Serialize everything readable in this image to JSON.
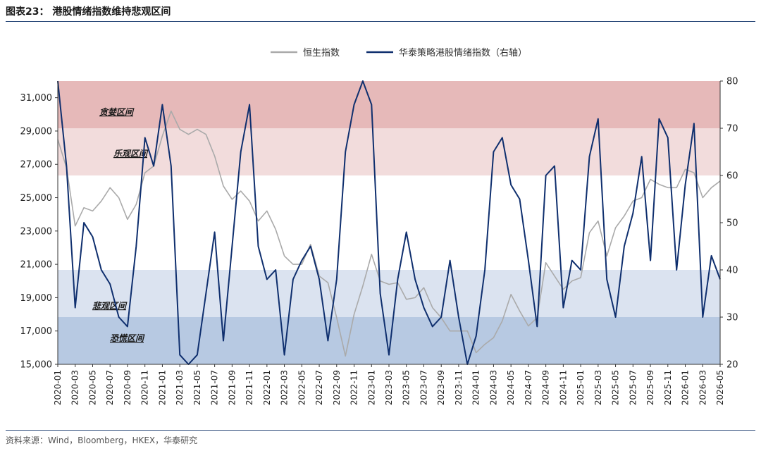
{
  "title": "图表23： 港股情绪指数维持悲观区间",
  "source": "资料来源：Wind，Bloomberg，HKEX，华泰研究",
  "chart_data": {
    "type": "line",
    "series": [
      {
        "name": "恒生指数",
        "axis": "left",
        "color": "#aaaaaa",
        "x": [
          "2020-01",
          "2020-02",
          "2020-03",
          "2020-04",
          "2020-05",
          "2020-06",
          "2020-07",
          "2020-08",
          "2020-09",
          "2020-10",
          "2020-11",
          "2020-12",
          "2021-01",
          "2021-02",
          "2021-03",
          "2021-04",
          "2021-05",
          "2021-06",
          "2021-07",
          "2021-08",
          "2021-09",
          "2021-10",
          "2021-11",
          "2021-12",
          "2022-01",
          "2022-02",
          "2022-03",
          "2022-04",
          "2022-05",
          "2022-06",
          "2022-07",
          "2022-08",
          "2022-09",
          "2022-10",
          "2022-11",
          "2022-12",
          "2023-01",
          "2023-02",
          "2023-03",
          "2023-04",
          "2023-05",
          "2023-06",
          "2023-07",
          "2023-08",
          "2023-09",
          "2023-10",
          "2023-11",
          "2023-12",
          "2024-01",
          "2024-02",
          "2024-03",
          "2024-04",
          "2024-05",
          "2024-06",
          "2024-07",
          "2024-08",
          "2024-09",
          "2024-10",
          "2024-11",
          "2024-12",
          "2025-01",
          "2025-02",
          "2025-03",
          "2025-04",
          "2025-05",
          "2025-06",
          "2025-07",
          "2025-08",
          "2025-09",
          "2025-10",
          "2025-11",
          "2025-12",
          "2026-01",
          "2026-02",
          "2026-03",
          "2026-04",
          "2026-05"
        ],
        "values": [
          28500,
          26800,
          23300,
          24400,
          24200,
          24800,
          25600,
          25000,
          23700,
          24600,
          26500,
          26900,
          28700,
          30200,
          29100,
          28800,
          29100,
          28800,
          27500,
          25700,
          24900,
          25400,
          24800,
          23600,
          24200,
          23100,
          21500,
          21000,
          21000,
          22200,
          20300,
          19900,
          17800,
          15500,
          18000,
          19700,
          21600,
          20000,
          19800,
          19900,
          18900,
          19000,
          19600,
          18400,
          17800,
          17000,
          17000,
          17000,
          15700,
          16200,
          16600,
          17600,
          19200,
          18200,
          17300,
          17800,
          21100,
          20300,
          19500,
          20000,
          20200,
          22900,
          23600,
          21500,
          23200,
          23900,
          24800,
          25000,
          26100,
          25800,
          25600,
          25600,
          26700,
          26500,
          25000,
          25600,
          26000
        ]
      },
      {
        "name": "华泰策略港股情绪指数（右轴）",
        "axis": "right",
        "color": "#0f2f6e",
        "x": [
          "2020-01",
          "2020-02",
          "2020-03",
          "2020-04",
          "2020-05",
          "2020-06",
          "2020-07",
          "2020-08",
          "2020-09",
          "2020-10",
          "2020-11",
          "2020-12",
          "2021-01",
          "2021-02",
          "2021-03",
          "2021-04",
          "2021-05",
          "2021-06",
          "2021-07",
          "2021-08",
          "2021-09",
          "2021-10",
          "2021-11",
          "2021-12",
          "2022-01",
          "2022-02",
          "2022-03",
          "2022-04",
          "2022-05",
          "2022-06",
          "2022-07",
          "2022-08",
          "2022-09",
          "2022-10",
          "2022-11",
          "2022-12",
          "2023-01",
          "2023-02",
          "2023-03",
          "2023-04",
          "2023-05",
          "2023-06",
          "2023-07",
          "2023-08",
          "2023-09",
          "2023-10",
          "2023-11",
          "2023-12",
          "2024-01",
          "2024-02",
          "2024-03",
          "2024-04",
          "2024-05",
          "2024-06",
          "2024-07",
          "2024-08",
          "2024-09",
          "2024-10",
          "2024-11",
          "2024-12",
          "2025-01",
          "2025-02",
          "2025-03",
          "2025-04",
          "2025-05",
          "2025-06",
          "2025-07",
          "2025-08",
          "2025-09",
          "2025-10",
          "2025-11",
          "2025-12",
          "2026-01",
          "2026-02",
          "2026-03",
          "2026-04",
          "2026-05"
        ],
        "values": [
          80,
          62,
          32,
          50,
          47,
          40,
          37,
          30,
          28,
          45,
          68,
          62,
          75,
          62,
          22,
          20,
          22,
          35,
          48,
          25,
          45,
          65,
          75,
          45,
          38,
          40,
          22,
          38,
          42,
          45,
          38,
          25,
          38,
          65,
          75,
          80,
          75,
          35,
          22,
          38,
          48,
          38,
          32,
          28,
          30,
          42,
          30,
          20,
          26,
          40,
          65,
          68,
          58,
          55,
          42,
          28,
          60,
          62,
          32,
          42,
          40,
          64,
          72,
          38,
          30,
          45,
          52,
          64,
          42,
          72,
          68,
          40,
          58,
          71,
          30,
          43,
          38
        ]
      }
    ],
    "left_axis": {
      "min": 15000,
      "max": 32000,
      "ticks": [
        "15,000",
        "17,000",
        "19,000",
        "21,000",
        "23,000",
        "25,000",
        "27,000",
        "29,000",
        "31,000"
      ]
    },
    "right_axis": {
      "min": 20,
      "max": 80,
      "ticks": [
        "20",
        "30",
        "40",
        "50",
        "60",
        "70",
        "80"
      ]
    },
    "x_ticks": [
      "2020-01",
      "2020-03",
      "2020-05",
      "2020-07",
      "2020-09",
      "2020-11",
      "2021-01",
      "2021-03",
      "2021-05",
      "2021-07",
      "2021-09",
      "2021-11",
      "2022-01",
      "2022-03",
      "2022-05",
      "2022-07",
      "2022-09",
      "2022-11",
      "2023-01",
      "2023-03",
      "2023-05",
      "2023-07",
      "2023-09",
      "2023-11",
      "2024-01",
      "2024-03",
      "2024-05",
      "2024-07",
      "2024-09",
      "2024-11",
      "2025-01",
      "2025-03",
      "2025-05",
      "2025-07",
      "2025-09",
      "2025-11",
      "2026-01",
      "2026-03",
      "2026-05"
    ],
    "zones": [
      {
        "label": "贪婪区间",
        "from": 70,
        "to": 80,
        "color": "#e6b9b9"
      },
      {
        "label": "乐观区间",
        "from": 60,
        "to": 70,
        "color": "#f2dcdc"
      },
      {
        "label": "悲观区间",
        "from": 30,
        "to": 40,
        "color": "#dbe3f0"
      },
      {
        "label": "恐慌区间",
        "from": 20,
        "to": 30,
        "color": "#b7c9e2"
      }
    ],
    "legend": "top-center",
    "grid": false
  }
}
